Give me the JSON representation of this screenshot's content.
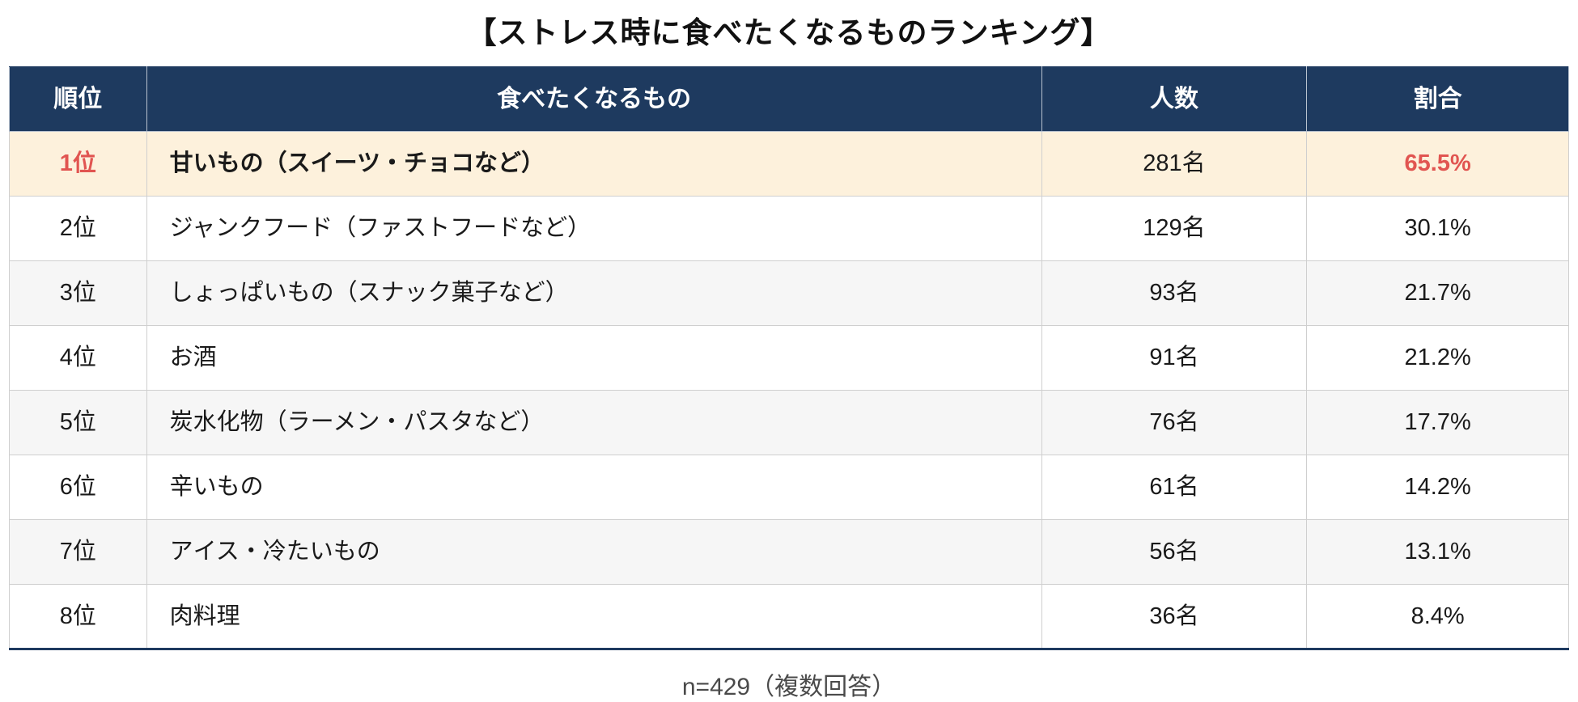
{
  "title": "【ストレス時に食べたくなるものランキング】",
  "colors": {
    "header_bg": "#1e3a5f",
    "header_text": "#ffffff",
    "highlight_row_bg": "#fdf1dc",
    "accent_red": "#e15551",
    "stripe_bg": "#f6f6f6",
    "border": "#cfcfcf"
  },
  "table": {
    "headers": {
      "rank": "順位",
      "food": "食べたくなるもの",
      "count": "人数",
      "percent": "割合"
    },
    "rows": [
      {
        "rank": "1位",
        "food": "甘いもの（スイーツ・チョコなど）",
        "count": "281名",
        "percent": "65.5%"
      },
      {
        "rank": "2位",
        "food": "ジャンクフード（ファストフードなど）",
        "count": "129名",
        "percent": "30.1%"
      },
      {
        "rank": "3位",
        "food": "しょっぱいもの（スナック菓子など）",
        "count": "93名",
        "percent": "21.7%"
      },
      {
        "rank": "4位",
        "food": "お酒",
        "count": "91名",
        "percent": "21.2%"
      },
      {
        "rank": "5位",
        "food": "炭水化物（ラーメン・パスタなど）",
        "count": "76名",
        "percent": "17.7%"
      },
      {
        "rank": "6位",
        "food": "辛いもの",
        "count": "61名",
        "percent": "14.2%"
      },
      {
        "rank": "7位",
        "food": "アイス・冷たいもの",
        "count": "56名",
        "percent": "13.1%"
      },
      {
        "rank": "8位",
        "food": "肉料理",
        "count": "36名",
        "percent": "8.4%"
      }
    ]
  },
  "footer_note": "n=429（複数回答）",
  "chart_data": {
    "type": "table",
    "title": "【ストレス時に食べたくなるものランキング】",
    "columns": [
      "順位",
      "食べたくなるもの",
      "人数",
      "割合"
    ],
    "categories": [
      "甘いもの（スイーツ・チョコなど）",
      "ジャンクフード（ファストフードなど）",
      "しょっぱいもの（スナック菓子など）",
      "お酒",
      "炭水化物（ラーメン・パスタなど）",
      "辛いもの",
      "アイス・冷たいもの",
      "肉料理"
    ],
    "series": [
      {
        "name": "人数",
        "values": [
          281,
          129,
          93,
          91,
          76,
          61,
          56,
          36
        ]
      },
      {
        "name": "割合(%)",
        "values": [
          65.5,
          30.1,
          21.7,
          21.2,
          17.7,
          14.2,
          13.1,
          8.4
        ]
      }
    ],
    "sample_note": "n=429（複数回答）",
    "highlighted_rank": 1
  }
}
